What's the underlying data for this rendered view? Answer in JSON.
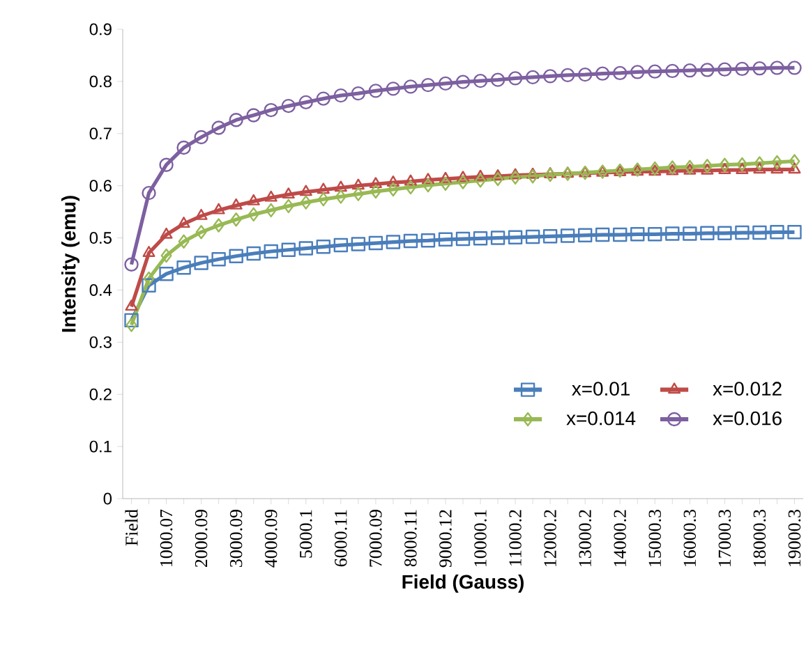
{
  "chart_data": {
    "type": "line",
    "xlabel": "Field (Gauss)",
    "ylabel": "Intensity  (emu)",
    "categories": [
      "Field",
      null,
      "1000.07",
      null,
      "2000.09",
      null,
      "3000.09",
      null,
      "4000.09",
      null,
      "5000.1",
      null,
      "6000.11",
      null,
      "7000.09",
      null,
      "8000.11",
      null,
      "9000.12",
      null,
      "10000.1",
      null,
      "11000.2",
      null,
      "12000.2",
      null,
      "13000.2",
      null,
      "14000.2",
      null,
      "15000.3",
      null,
      "16000.3",
      null,
      "17000.3",
      null,
      "18000.3",
      null,
      "19000.3"
    ],
    "ylim": [
      0,
      0.9
    ],
    "yticks": [
      0,
      0.1,
      0.2,
      0.3,
      0.4,
      0.5,
      0.6,
      0.7,
      0.8,
      0.9
    ],
    "legend": "bottom right",
    "grid": false,
    "line_style": "solid",
    "series": [
      {
        "name": "x=0.01",
        "color": "#4a7ebb",
        "marker": "square",
        "values": [
          0.342,
          0.409,
          0.431,
          0.443,
          0.452,
          0.459,
          0.465,
          0.47,
          0.474,
          0.477,
          0.48,
          0.483,
          0.486,
          0.488,
          0.49,
          0.492,
          0.494,
          0.495,
          0.497,
          0.498,
          0.499,
          0.5,
          0.501,
          0.502,
          0.503,
          0.504,
          0.505,
          0.506,
          0.506,
          0.507,
          0.507,
          0.508,
          0.508,
          0.509,
          0.509,
          0.51,
          0.51,
          0.511,
          0.511
        ]
      },
      {
        "name": "x=0.012",
        "color": "#be4b48",
        "marker": "triangle",
        "values": [
          0.368,
          0.471,
          0.506,
          0.527,
          0.542,
          0.553,
          0.562,
          0.57,
          0.577,
          0.583,
          0.588,
          0.592,
          0.596,
          0.6,
          0.603,
          0.606,
          0.608,
          0.611,
          0.613,
          0.615,
          0.617,
          0.618,
          0.62,
          0.621,
          0.622,
          0.623,
          0.624,
          0.625,
          0.626,
          0.627,
          0.627,
          0.628,
          0.629,
          0.629,
          0.63,
          0.63,
          0.631,
          0.631,
          0.631
        ]
      },
      {
        "name": "x=0.014",
        "color": "#98b954",
        "marker": "diamond",
        "values": [
          0.333,
          0.422,
          0.466,
          0.493,
          0.511,
          0.524,
          0.535,
          0.545,
          0.553,
          0.561,
          0.568,
          0.574,
          0.579,
          0.584,
          0.589,
          0.593,
          0.597,
          0.601,
          0.604,
          0.607,
          0.61,
          0.613,
          0.616,
          0.618,
          0.621,
          0.623,
          0.625,
          0.627,
          0.629,
          0.631,
          0.633,
          0.635,
          0.636,
          0.638,
          0.64,
          0.641,
          0.643,
          0.645,
          0.647
        ]
      },
      {
        "name": "x=0.016",
        "color": "#7d60a0",
        "marker": "circle",
        "values": [
          0.449,
          0.586,
          0.64,
          0.673,
          0.693,
          0.711,
          0.726,
          0.735,
          0.745,
          0.753,
          0.76,
          0.767,
          0.773,
          0.777,
          0.782,
          0.786,
          0.79,
          0.793,
          0.796,
          0.799,
          0.801,
          0.803,
          0.806,
          0.808,
          0.81,
          0.812,
          0.813,
          0.815,
          0.816,
          0.818,
          0.819,
          0.82,
          0.821,
          0.822,
          0.823,
          0.824,
          0.825,
          0.826,
          0.826
        ]
      }
    ]
  }
}
